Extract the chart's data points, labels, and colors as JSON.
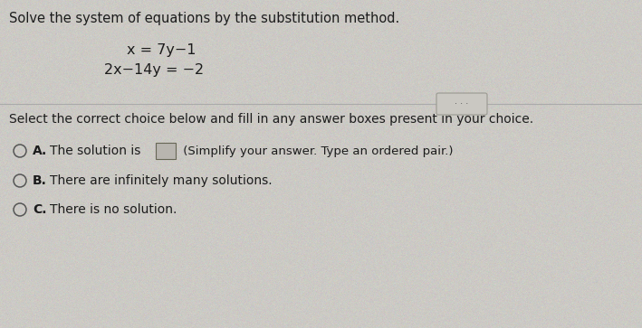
{
  "bg_color": "#cccac5",
  "title_text": "Solve the system of equations by the substitution method.",
  "eq1": "x = 7y−1",
  "eq2": "2x−14y = −2",
  "select_text": "Select the correct choice below and fill in any answer boxes present in your choice.",
  "choice_A_text1": "The solution is",
  "choice_A_text2": " (Simplify your answer. Type an ordered pair.)",
  "choice_B_text": "There are infinitely many solutions.",
  "choice_C_text": "There is no solution.",
  "text_color": "#1c1c1c",
  "choice_label_color": "#1c1c1c",
  "divider_color": "#aaaaaa",
  "circle_color": "#555555",
  "font_size_title": 10.5,
  "font_size_eq": 11.5,
  "font_size_body": 10,
  "font_size_choice": 10
}
